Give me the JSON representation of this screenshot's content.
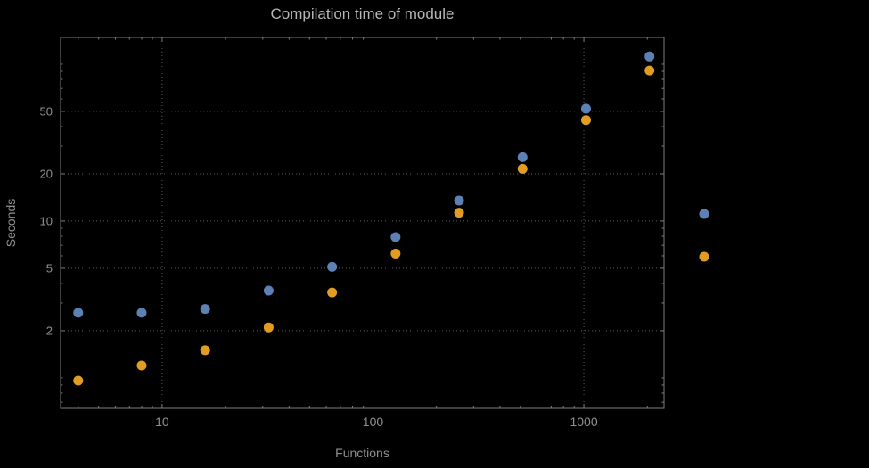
{
  "window": {
    "background": "#000000"
  },
  "chart_data": {
    "type": "scatter",
    "title": "Compilation time of module",
    "xlabel": "Functions",
    "ylabel": "Seconds",
    "x_scale": "log",
    "y_scale": "log",
    "x_ticks": [
      10,
      100,
      1000
    ],
    "y_ticks": [
      2,
      5,
      10,
      20,
      50
    ],
    "x_range": [
      3.3,
      2400
    ],
    "y_range": [
      0.64,
      148
    ],
    "grid": "dotted",
    "series": [
      {
        "name": "blue",
        "color": "#5E81B5",
        "points": [
          [
            4,
            2.6
          ],
          [
            8,
            2.6
          ],
          [
            16,
            2.75
          ],
          [
            32,
            3.6
          ],
          [
            64,
            5.1
          ],
          [
            128,
            7.9
          ],
          [
            256,
            13.5
          ],
          [
            512,
            25.5
          ],
          [
            1024,
            52
          ],
          [
            2048,
            112
          ]
        ]
      },
      {
        "name": "orange",
        "color": "#E19C24",
        "points": [
          [
            4,
            0.96
          ],
          [
            8,
            1.2
          ],
          [
            16,
            1.5
          ],
          [
            32,
            2.1
          ],
          [
            64,
            3.5
          ],
          [
            128,
            6.2
          ],
          [
            256,
            11.3
          ],
          [
            512,
            21.5
          ],
          [
            1024,
            44
          ],
          [
            2048,
            91
          ]
        ]
      }
    ],
    "legend": {
      "position": "outside-right",
      "labels_visible": false,
      "marker_colors": [
        "#5E81B5",
        "#E19C24"
      ]
    }
  },
  "style": {
    "frame_color": "#7d7d7d",
    "grid_color": "#5c5c5c",
    "tick_label_color": "#909090",
    "axis_label_color": "#8f8f8f",
    "title_color": "#b6b6b6",
    "point_radius": 5.5
  }
}
